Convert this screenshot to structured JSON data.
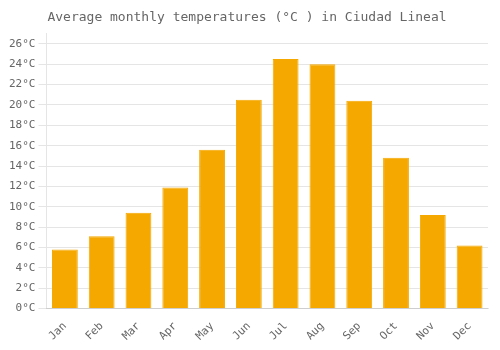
{
  "chart_data": {
    "type": "bar",
    "title": "Average monthly temperatures (°C ) in Ciudad Lineal",
    "categories": [
      "Jan",
      "Feb",
      "Mar",
      "Apr",
      "May",
      "Jun",
      "Jul",
      "Aug",
      "Sep",
      "Oct",
      "Nov",
      "Dec"
    ],
    "values": [
      5.8,
      7.1,
      9.4,
      11.9,
      15.6,
      20.5,
      24.5,
      24.0,
      20.4,
      14.8,
      9.2,
      6.2
    ],
    "color": "#F5A800",
    "ylim": [
      0,
      27
    ],
    "yticks": [
      {
        "value": 0,
        "label": "0°C"
      },
      {
        "value": 2,
        "label": "2°C"
      },
      {
        "value": 4,
        "label": "4°C"
      },
      {
        "value": 6,
        "label": "6°C"
      },
      {
        "value": 8,
        "label": "8°C"
      },
      {
        "value": 10,
        "label": "10°C"
      },
      {
        "value": 12,
        "label": "12°C"
      },
      {
        "value": 14,
        "label": "14°C"
      },
      {
        "value": 16,
        "label": "16°C"
      },
      {
        "value": 18,
        "label": "18°C"
      },
      {
        "value": 20,
        "label": "20°C"
      },
      {
        "value": 22,
        "label": "22°C"
      },
      {
        "value": 24,
        "label": "24°C"
      },
      {
        "value": 26,
        "label": "26°C"
      }
    ],
    "grid": true
  }
}
